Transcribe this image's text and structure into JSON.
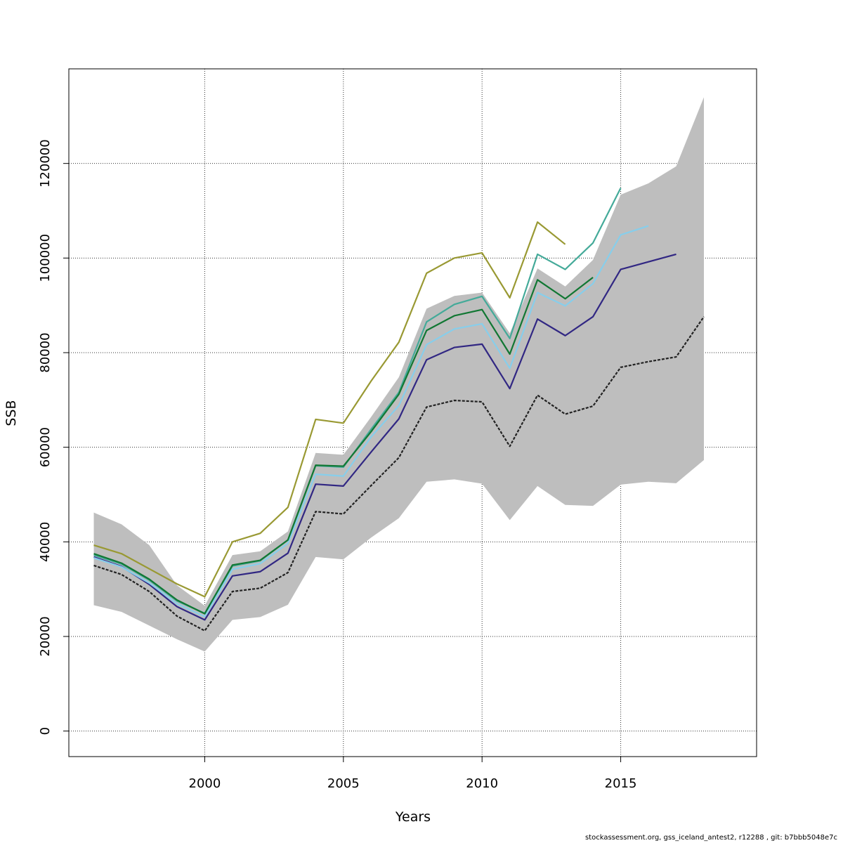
{
  "chart_data": {
    "type": "line",
    "title": "",
    "xlabel": "Years",
    "ylabel": "SSB",
    "xlim": [
      1995.1,
      2019.9
    ],
    "ylim": [
      -5400,
      140000
    ],
    "x_ticks": [
      2000,
      2005,
      2010,
      2015
    ],
    "x_tick_labels": [
      "2000",
      "2005",
      "2010",
      "2015"
    ],
    "y_ticks": [
      0,
      20000,
      40000,
      60000,
      80000,
      100000,
      120000
    ],
    "y_tick_labels": [
      "0",
      "20000",
      "40000",
      "60000",
      "80000",
      "100000",
      "120000"
    ],
    "grid": true,
    "confidence_band": {
      "x": [
        1996,
        1997,
        1998,
        1999,
        2000,
        2001,
        2002,
        2003,
        2004,
        2005,
        2006,
        2007,
        2008,
        2009,
        2010,
        2011,
        2012,
        2013,
        2014,
        2015,
        2016,
        2017,
        2018
      ],
      "upper": [
        46200,
        43700,
        39300,
        30800,
        26500,
        37200,
        38000,
        42200,
        58800,
        58400,
        66400,
        74800,
        89300,
        92000,
        92700,
        84100,
        97800,
        94000,
        99600,
        113400,
        115800,
        119400,
        134000
      ],
      "lower": [
        26600,
        25200,
        22300,
        19400,
        16800,
        23500,
        24100,
        26700,
        36800,
        36300,
        40900,
        45000,
        52700,
        53200,
        52300,
        44600,
        51800,
        47800,
        47600,
        52100,
        52700,
        52400,
        57300
      ],
      "color": "#bebebe"
    },
    "series": [
      {
        "color": "#222222",
        "dashed": true,
        "x": [
          1996,
          1997,
          1998,
          1999,
          2000,
          2001,
          2002,
          2003,
          2004,
          2005,
          2006,
          2007,
          2008,
          2009,
          2010,
          2011,
          2012,
          2013,
          2014,
          2015,
          2016,
          2017,
          2018
        ],
        "values": [
          35000,
          33100,
          29500,
          24300,
          21200,
          29500,
          30200,
          33500,
          46400,
          45900,
          51900,
          57800,
          68500,
          69900,
          69600,
          60200,
          71000,
          67000,
          68700,
          76900,
          78100,
          79100,
          87600
        ]
      },
      {
        "color": "#312783",
        "x": [
          1996,
          1997,
          1998,
          1999,
          2000,
          2001,
          2002,
          2003,
          2004,
          2005,
          2006,
          2007,
          2008,
          2009,
          2010,
          2011,
          2012,
          2013,
          2014,
          2015,
          2016,
          2017
        ],
        "values": [
          36800,
          34800,
          31000,
          26300,
          23500,
          32800,
          33700,
          37600,
          52200,
          51800,
          59000,
          66000,
          78500,
          81100,
          81800,
          72400,
          87100,
          83600,
          87600,
          97600,
          99200,
          100800
        ]
      },
      {
        "color": "#87ceeb",
        "x": [
          1996,
          1997,
          1998,
          1999,
          2000,
          2001,
          2002,
          2003,
          2004,
          2005,
          2006,
          2007,
          2008,
          2009,
          2010,
          2011,
          2012,
          2013,
          2014,
          2015,
          2016
        ],
        "values": [
          36600,
          34700,
          31300,
          26900,
          24200,
          34200,
          35400,
          39700,
          54300,
          53900,
          62200,
          68800,
          81700,
          85000,
          86100,
          76700,
          92700,
          89900,
          94600,
          104900,
          106800
        ]
      },
      {
        "color": "#44aa99",
        "x": [
          1996,
          1997,
          1998,
          1999,
          2000,
          2001,
          2002,
          2003,
          2004,
          2005,
          2006,
          2007,
          2008,
          2009,
          2010,
          2011,
          2012,
          2013,
          2014,
          2015
        ],
        "values": [
          37200,
          35300,
          31900,
          27500,
          24900,
          34900,
          36000,
          40400,
          56100,
          55800,
          63800,
          71600,
          86500,
          90200,
          91900,
          83000,
          100800,
          97600,
          103200,
          114800
        ]
      },
      {
        "color": "#117733",
        "x": [
          1996,
          1997,
          1998,
          1999,
          2000,
          2001,
          2002,
          2003,
          2004,
          2005,
          2006,
          2007,
          2008,
          2009,
          2010,
          2011,
          2012,
          2013,
          2014
        ],
        "values": [
          37500,
          35500,
          32100,
          27700,
          24800,
          35100,
          36100,
          40400,
          56200,
          56000,
          63300,
          71200,
          84700,
          87800,
          89100,
          79700,
          95400,
          91400,
          95900
        ]
      },
      {
        "color": "#999933",
        "x": [
          1996,
          1997,
          1998,
          1999,
          2000,
          2001,
          2002,
          2003,
          2004,
          2005,
          2006,
          2007,
          2008,
          2009,
          2010,
          2011,
          2012,
          2013
        ],
        "values": [
          39300,
          37500,
          34300,
          31100,
          28400,
          40000,
          41800,
          47300,
          65900,
          65100,
          74000,
          82200,
          96800,
          100000,
          101100,
          91600,
          107600,
          102900
        ]
      }
    ]
  },
  "footer": {
    "text": "stockassessment.org, gss_iceland_antest2, r12288 , git: b7bbb5048e7c"
  }
}
